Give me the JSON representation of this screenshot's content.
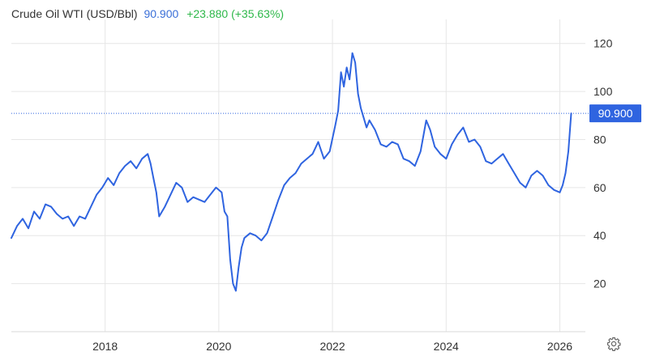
{
  "header": {
    "title": "Crude Oil WTI (USD/Bbl)",
    "price": "90.900",
    "change": "+23.880 (+35.63%)"
  },
  "colors": {
    "line": "#2f64e0",
    "price_up": "#2eb84a",
    "price_text": "#3a6fd8",
    "grid": "#e6e6e6",
    "reference_line": "#2f64e0",
    "tag_bg": "#2f64e0"
  },
  "icons": {
    "settings": "gear-icon"
  },
  "chart_data": {
    "type": "line",
    "title": "Crude Oil WTI (USD/Bbl)",
    "xlabel": "",
    "ylabel": "",
    "xlim": [
      2016.35,
      2026.45
    ],
    "ylim": [
      0,
      130
    ],
    "x_ticks": [
      2018,
      2020,
      2022,
      2024,
      2026
    ],
    "x_tick_labels": [
      "2018",
      "2020",
      "2022",
      "2024",
      "2026"
    ],
    "y_ticks": [
      20,
      40,
      60,
      80,
      100,
      120
    ],
    "y_tick_labels": [
      "20",
      "40",
      "60",
      "80",
      "100",
      "120"
    ],
    "grid": true,
    "legend": "none",
    "last_value": 90.9,
    "last_value_label": "90.900",
    "series": [
      {
        "x": [
          2016.35,
          2016.45,
          2016.55,
          2016.65,
          2016.75,
          2016.85,
          2016.95,
          2017.05,
          2017.15,
          2017.25,
          2017.35,
          2017.45,
          2017.55,
          2017.65,
          2017.75,
          2017.85,
          2017.95,
          2018.05,
          2018.15,
          2018.25,
          2018.35,
          2018.45,
          2018.55,
          2018.65,
          2018.75,
          2018.8,
          2018.85,
          2018.9,
          2018.95,
          2019.05,
          2019.15,
          2019.25,
          2019.35,
          2019.45,
          2019.55,
          2019.65,
          2019.75,
          2019.85,
          2019.95,
          2020.05,
          2020.1,
          2020.15,
          2020.2,
          2020.25,
          2020.3,
          2020.35,
          2020.4,
          2020.45,
          2020.55,
          2020.65,
          2020.75,
          2020.85,
          2020.95,
          2021.05,
          2021.15,
          2021.25,
          2021.35,
          2021.45,
          2021.55,
          2021.65,
          2021.75,
          2021.85,
          2021.95,
          2022.05,
          2022.1,
          2022.15,
          2022.2,
          2022.25,
          2022.3,
          2022.35,
          2022.4,
          2022.45,
          2022.5,
          2022.55,
          2022.6,
          2022.65,
          2022.75,
          2022.85,
          2022.95,
          2023.05,
          2023.15,
          2023.25,
          2023.35,
          2023.45,
          2023.55,
          2023.65,
          2023.72,
          2023.8,
          2023.9,
          2024.0,
          2024.1,
          2024.2,
          2024.3,
          2024.4,
          2024.5,
          2024.6,
          2024.7,
          2024.8,
          2024.9,
          2025.0,
          2025.1,
          2025.2,
          2025.3,
          2025.4,
          2025.5,
          2025.6,
          2025.7,
          2025.8,
          2025.9,
          2026.0,
          2026.05,
          2026.1,
          2026.15,
          2026.2
        ],
        "values": [
          39,
          44,
          47,
          43,
          50,
          47,
          53,
          52,
          49,
          47,
          48,
          44,
          48,
          47,
          52,
          57,
          60,
          64,
          61,
          66,
          69,
          71,
          68,
          72,
          74,
          70,
          64,
          58,
          48,
          52,
          57,
          62,
          60,
          54,
          56,
          55,
          54,
          57,
          60,
          58,
          50,
          48,
          30,
          20,
          17,
          27,
          35,
          39,
          41,
          40,
          38,
          41,
          48,
          55,
          61,
          64,
          66,
          70,
          72,
          74,
          79,
          72,
          75,
          86,
          92,
          108,
          102,
          110,
          105,
          116,
          112,
          99,
          93,
          89,
          85,
          88,
          84,
          78,
          77,
          79,
          78,
          72,
          71,
          69,
          75,
          88,
          84,
          77,
          74,
          72,
          78,
          82,
          85,
          79,
          80,
          77,
          71,
          70,
          72,
          74,
          70,
          66,
          62,
          60,
          65,
          67,
          65,
          61,
          59,
          58,
          61,
          66,
          75,
          90.9
        ]
      }
    ]
  }
}
